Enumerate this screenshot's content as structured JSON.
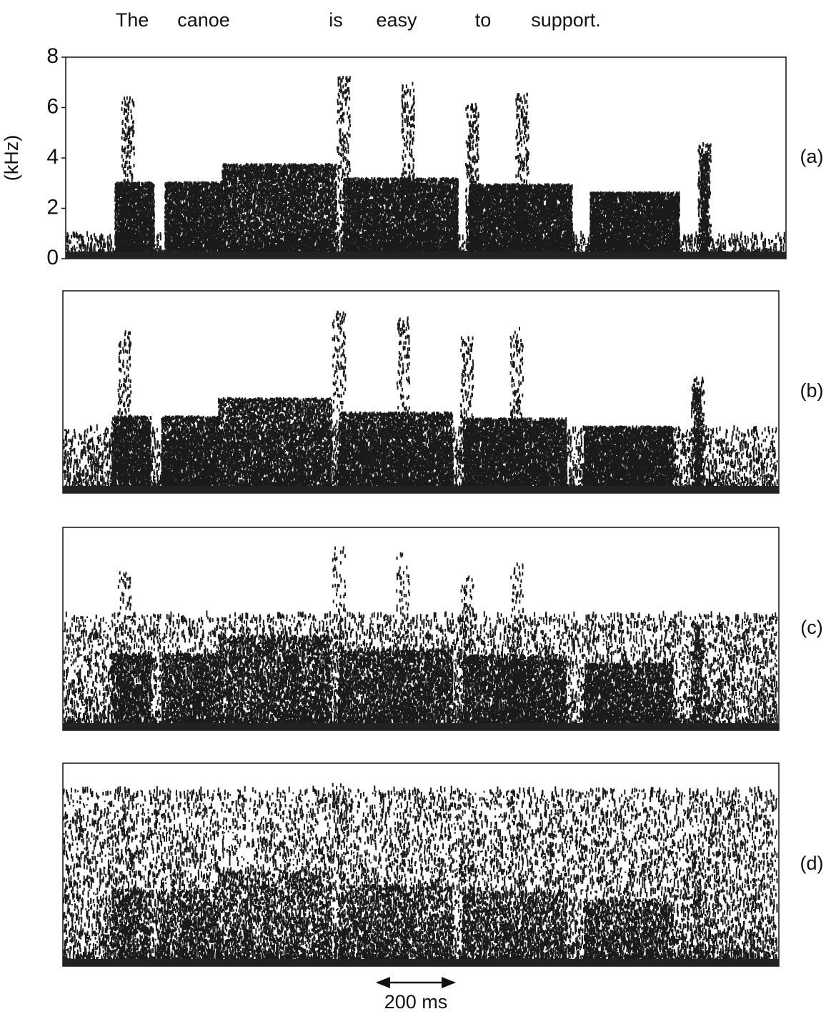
{
  "sentence": [
    "The",
    "canoe",
    "is",
    "easy",
    "to",
    "support."
  ],
  "y_axis": {
    "label": "(kHz)",
    "ticks": [
      0,
      2,
      4,
      6,
      8
    ]
  },
  "panels": [
    {
      "label": "(a)"
    },
    {
      "label": "(b)"
    },
    {
      "label": "(c)"
    },
    {
      "label": "(d)"
    }
  ],
  "scale_bar": {
    "label": "200 ms"
  }
}
